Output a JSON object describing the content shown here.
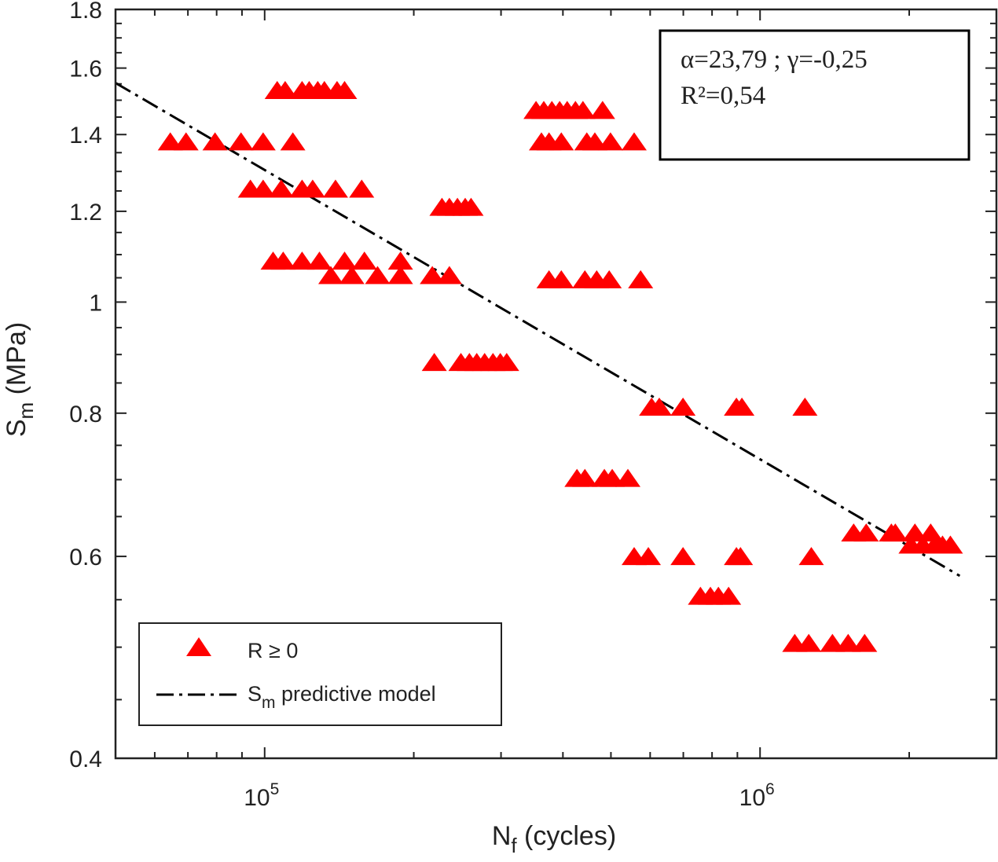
{
  "chart_data": {
    "type": "scatter",
    "x_scale": "log",
    "y_scale": "log",
    "xlim": [
      50000,
      3000000
    ],
    "ylim": [
      0.4,
      1.8
    ],
    "xlabel_main": "N",
    "xlabel_sub": "f",
    "xlabel_rest": " (cycles)",
    "ylabel_main": "S",
    "ylabel_sub": "m",
    "ylabel_rest": " (MPa)",
    "x_ticks": [
      {
        "value": 100000,
        "base": "10",
        "exp": "5"
      },
      {
        "value": 1000000,
        "base": "10",
        "exp": "6"
      }
    ],
    "y_ticks": [
      {
        "value": 0.4,
        "label": "0.4"
      },
      {
        "value": 0.6,
        "label": "0.6"
      },
      {
        "value": 0.8,
        "label": "0.8"
      },
      {
        "value": 1.0,
        "label": "1"
      },
      {
        "value": 1.2,
        "label": "1.2"
      },
      {
        "value": 1.4,
        "label": "1.4"
      },
      {
        "value": 1.6,
        "label": "1.6"
      },
      {
        "value": 1.8,
        "label": "1.8"
      }
    ],
    "grid": false,
    "legend_position": "bottom-left",
    "legend": [
      {
        "label": "R ≥ 0",
        "marker": "triangle"
      },
      {
        "label_main": "S",
        "label_sub": "m",
        "label_rest": " predictive model",
        "marker": "dash-dot"
      }
    ],
    "annotation": {
      "line1": "α=23,79 ; γ=-0,25",
      "line2": "R²=0,54",
      "position": "top-right"
    },
    "colors": {
      "points": "#ff0000",
      "model": "#000000",
      "axes": "#222222"
    },
    "series": [
      {
        "name": "R ≥ 0",
        "points": [
          [
            64500,
            1.38
          ],
          [
            69400,
            1.38
          ],
          [
            79400,
            1.38
          ],
          [
            89600,
            1.38
          ],
          [
            99300,
            1.38
          ],
          [
            114000,
            1.38
          ],
          [
            106000,
            1.53
          ],
          [
            110000,
            1.53
          ],
          [
            119000,
            1.53
          ],
          [
            123000,
            1.53
          ],
          [
            128000,
            1.53
          ],
          [
            132000,
            1.53
          ],
          [
            140000,
            1.53
          ],
          [
            145000,
            1.53
          ],
          [
            93600,
            1.255
          ],
          [
            99300,
            1.255
          ],
          [
            108000,
            1.255
          ],
          [
            119000,
            1.255
          ],
          [
            125000,
            1.255
          ],
          [
            139000,
            1.255
          ],
          [
            157000,
            1.255
          ],
          [
            104000,
            1.086
          ],
          [
            109000,
            1.086
          ],
          [
            119000,
            1.086
          ],
          [
            129000,
            1.086
          ],
          [
            145000,
            1.086
          ],
          [
            159000,
            1.086
          ],
          [
            188000,
            1.086
          ],
          [
            136000,
            1.055
          ],
          [
            150000,
            1.055
          ],
          [
            169000,
            1.055
          ],
          [
            188000,
            1.055
          ],
          [
            218000,
            1.055
          ],
          [
            236000,
            1.055
          ],
          [
            228000,
            1.21
          ],
          [
            236000,
            1.21
          ],
          [
            245000,
            1.21
          ],
          [
            254000,
            1.21
          ],
          [
            261000,
            1.21
          ],
          [
            220000,
            0.886
          ],
          [
            249000,
            0.886
          ],
          [
            259000,
            0.886
          ],
          [
            268000,
            0.886
          ],
          [
            278000,
            0.886
          ],
          [
            289000,
            0.886
          ],
          [
            299000,
            0.886
          ],
          [
            308000,
            0.886
          ],
          [
            353000,
            1.47
          ],
          [
            366000,
            1.47
          ],
          [
            380000,
            1.47
          ],
          [
            394000,
            1.47
          ],
          [
            408000,
            1.47
          ],
          [
            424000,
            1.47
          ],
          [
            439000,
            1.47
          ],
          [
            481000,
            1.47
          ],
          [
            362000,
            1.38
          ],
          [
            375000,
            1.38
          ],
          [
            397000,
            1.38
          ],
          [
            447000,
            1.38
          ],
          [
            464000,
            1.38
          ],
          [
            499000,
            1.38
          ],
          [
            557000,
            1.38
          ],
          [
            375000,
            1.046
          ],
          [
            397000,
            1.046
          ],
          [
            443000,
            1.046
          ],
          [
            468000,
            1.046
          ],
          [
            496000,
            1.046
          ],
          [
            574000,
            1.046
          ],
          [
            604000,
            0.81
          ],
          [
            626000,
            0.81
          ],
          [
            699000,
            0.81
          ],
          [
            896000,
            0.81
          ],
          [
            919000,
            0.81
          ],
          [
            1232000,
            0.81
          ],
          [
            427000,
            0.702
          ],
          [
            443000,
            0.702
          ],
          [
            485000,
            0.702
          ],
          [
            503000,
            0.702
          ],
          [
            541000,
            0.702
          ],
          [
            557000,
            0.6
          ],
          [
            595000,
            0.6
          ],
          [
            699000,
            0.6
          ],
          [
            896000,
            0.6
          ],
          [
            913000,
            0.6
          ],
          [
            1269000,
            0.6
          ],
          [
            758000,
            0.554
          ],
          [
            794000,
            0.554
          ],
          [
            824000,
            0.554
          ],
          [
            864000,
            0.554
          ],
          [
            1545000,
            0.629
          ],
          [
            1638000,
            0.629
          ],
          [
            1841000,
            0.629
          ],
          [
            1875000,
            0.629
          ],
          [
            2054000,
            0.629
          ],
          [
            2210000,
            0.629
          ],
          [
            2017000,
            0.614
          ],
          [
            2131000,
            0.614
          ],
          [
            2250000,
            0.614
          ],
          [
            2335000,
            0.614
          ],
          [
            2422000,
            0.614
          ],
          [
            1175000,
            0.504
          ],
          [
            1254000,
            0.504
          ],
          [
            1400000,
            0.504
          ],
          [
            1506000,
            0.504
          ],
          [
            1626000,
            0.504
          ]
        ]
      }
    ],
    "model_line": {
      "name": "S_m predictive model",
      "points": [
        [
          50000,
          1.553
        ],
        [
          2530000,
          0.577
        ]
      ]
    }
  }
}
